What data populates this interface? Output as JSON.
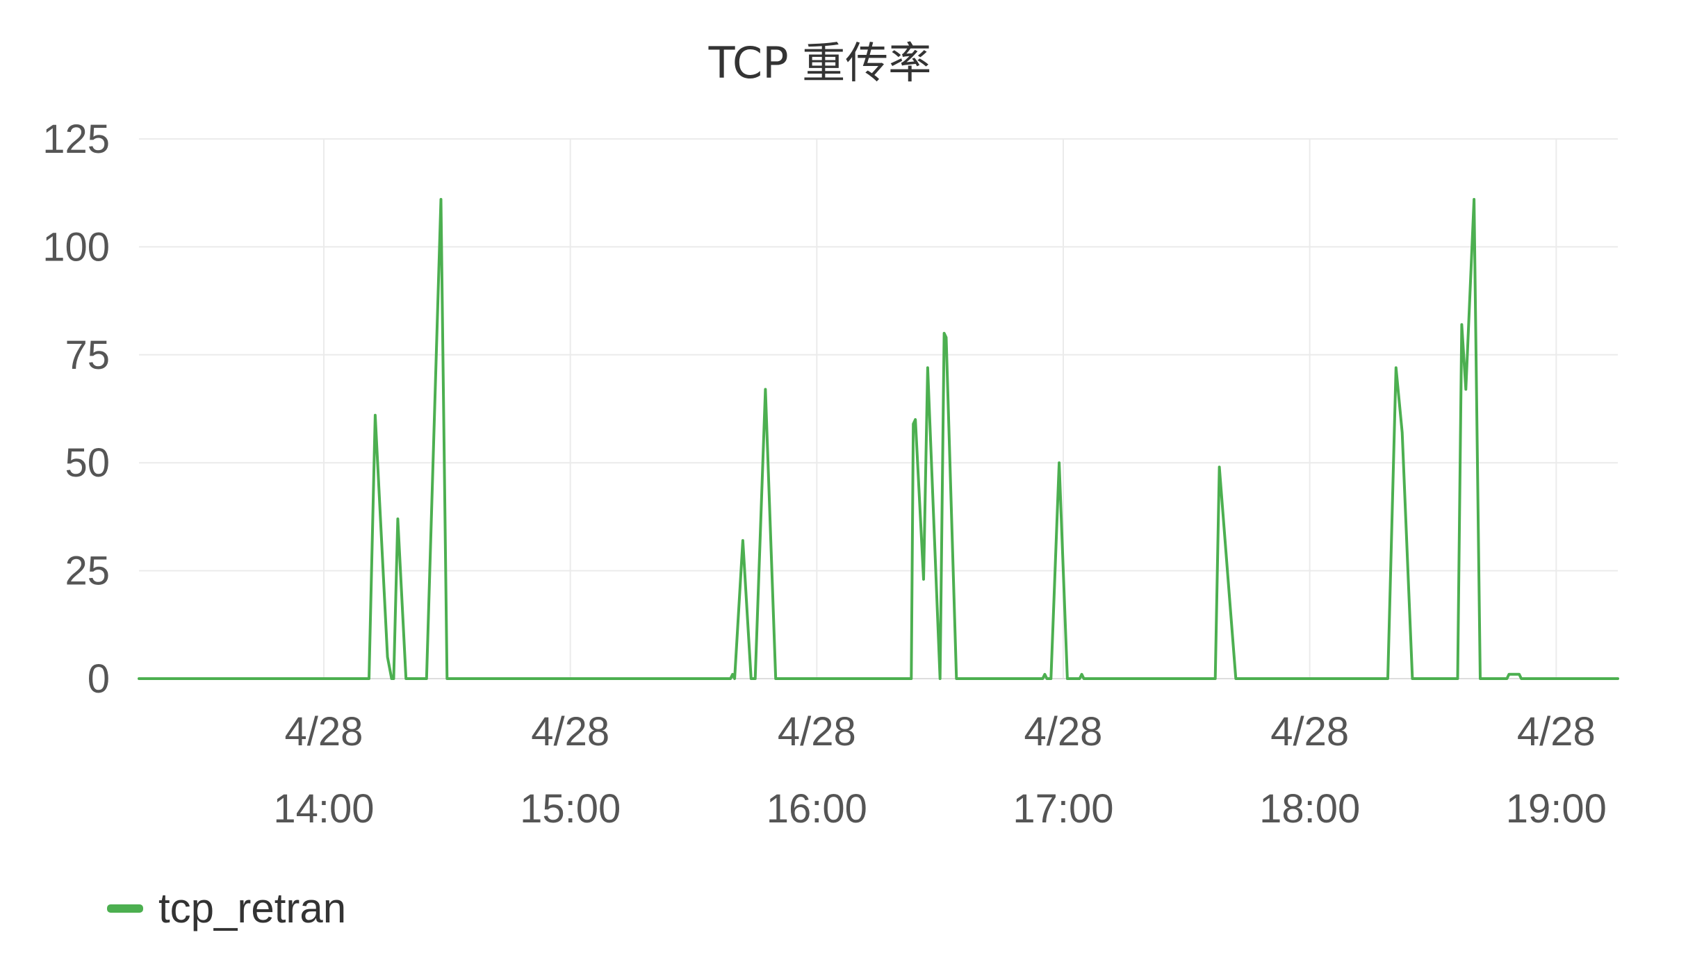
{
  "chart_data": {
    "type": "line",
    "title": "TCP 重传率",
    "xlabel": "",
    "ylabel": "",
    "ylim": [
      0,
      125
    ],
    "yticks": [
      0,
      25,
      50,
      75,
      100,
      125
    ],
    "xlim": [
      "13:15",
      "19:15"
    ],
    "xticks": [
      {
        "time": "14:00",
        "line1": "4/28",
        "line2": "14:00"
      },
      {
        "time": "15:00",
        "line1": "4/28",
        "line2": "15:00"
      },
      {
        "time": "16:00",
        "line1": "4/28",
        "line2": "16:00"
      },
      {
        "time": "17:00",
        "line1": "4/28",
        "line2": "17:00"
      },
      {
        "time": "18:00",
        "line1": "4/28",
        "line2": "18:00"
      },
      {
        "time": "19:00",
        "line1": "4/28",
        "line2": "19:00"
      }
    ],
    "grid": true,
    "legend_position": "bottom-left",
    "series": [
      {
        "name": "tcp_retran",
        "color": "#4caf50",
        "points": [
          [
            "13:15",
            0
          ],
          [
            "14:11",
            0
          ],
          [
            "14:12.5",
            61
          ],
          [
            "14:15.5",
            5
          ],
          [
            "14:16.5",
            0
          ],
          [
            "14:17",
            0
          ],
          [
            "14:18",
            37
          ],
          [
            "14:20",
            0
          ],
          [
            "14:25",
            0
          ],
          [
            "14:28.5",
            111
          ],
          [
            "14:30",
            0
          ],
          [
            "15:39",
            0
          ],
          [
            "15:39.5",
            1
          ],
          [
            "15:40",
            0
          ],
          [
            "15:42",
            32
          ],
          [
            "15:44",
            0
          ],
          [
            "15:45",
            0
          ],
          [
            "15:47.5",
            67
          ],
          [
            "15:50",
            0
          ],
          [
            "16:23",
            0
          ],
          [
            "16:23.5",
            59
          ],
          [
            "16:24",
            60
          ],
          [
            "16:26",
            23
          ],
          [
            "16:27",
            72
          ],
          [
            "16:30",
            0
          ],
          [
            "16:31",
            80
          ],
          [
            "16:31.5",
            79
          ],
          [
            "16:34",
            0
          ],
          [
            "16:55",
            0
          ],
          [
            "16:55.5",
            1
          ],
          [
            "16:56",
            0
          ],
          [
            "16:57",
            0
          ],
          [
            "16:59",
            50
          ],
          [
            "17:01",
            0
          ],
          [
            "17:04",
            0
          ],
          [
            "17:04.5",
            1
          ],
          [
            "17:05",
            0
          ],
          [
            "17:37",
            0
          ],
          [
            "17:38",
            49
          ],
          [
            "17:42",
            0
          ],
          [
            "18:19",
            0
          ],
          [
            "18:21",
            72
          ],
          [
            "18:22.5",
            57
          ],
          [
            "18:25",
            0
          ],
          [
            "18:36",
            0
          ],
          [
            "18:37",
            82
          ],
          [
            "18:38",
            67
          ],
          [
            "18:40",
            111
          ],
          [
            "18:41.5",
            0
          ],
          [
            "18:48",
            0
          ],
          [
            "18:48.5",
            1
          ],
          [
            "18:51",
            1
          ],
          [
            "18:51.5",
            0
          ],
          [
            "19:15",
            0
          ]
        ]
      }
    ]
  }
}
